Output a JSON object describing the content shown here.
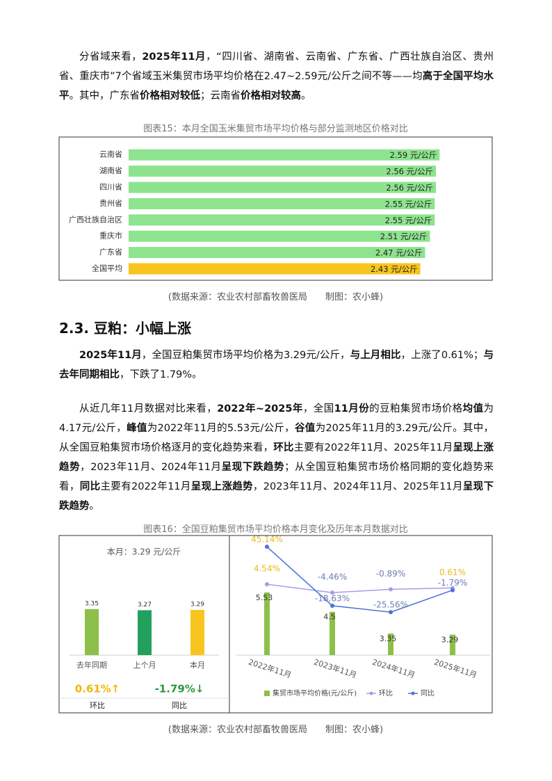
{
  "paragraphs": [
    {
      "runs": [
        {
          "text": "分省域来看，",
          "bold": false
        },
        {
          "text": "2025年11月",
          "bold": true
        },
        {
          "text": "，“四川省、湖南省、云南省、广东省、广西壮族自治区、贵州省、重庆市”7个省域玉米集贸市场平均价格在2.47~2.59元/公斤之间不等——均",
          "bold": false
        },
        {
          "text": "高于全国平均水平",
          "bold": true
        },
        {
          "text": "。其中，广东省",
          "bold": false
        },
        {
          "text": "价格相对较低",
          "bold": true
        },
        {
          "text": "；云南省",
          "bold": false
        },
        {
          "text": "价格相对较高",
          "bold": true
        },
        {
          "text": "。",
          "bold": false
        }
      ]
    },
    {
      "runs": [
        {
          "text": "2025年11月",
          "bold": true
        },
        {
          "text": "，全国豆粕集贸市场平均价格为3.29元/公斤，",
          "bold": false
        },
        {
          "text": "与上月相比",
          "bold": true
        },
        {
          "text": "，上涨了0.61%；",
          "bold": false
        },
        {
          "text": "与去年同期相比",
          "bold": true
        },
        {
          "text": "，下跌了1.79%。",
          "bold": false
        }
      ]
    },
    {
      "runs": [
        {
          "text": "从近几年11月数据对比来看，",
          "bold": false
        },
        {
          "text": "2022年~2025年",
          "bold": true
        },
        {
          "text": "，全国",
          "bold": false
        },
        {
          "text": "11月份",
          "bold": true
        },
        {
          "text": "的豆粕集贸市场价格",
          "bold": false
        },
        {
          "text": "均值",
          "bold": true
        },
        {
          "text": "为4.17元/公斤，",
          "bold": false
        },
        {
          "text": "峰值",
          "bold": true
        },
        {
          "text": "为2022年11月的5.53元/公斤，",
          "bold": false
        },
        {
          "text": "谷值",
          "bold": true
        },
        {
          "text": "为2025年11月的3.29元/公斤。其中，从全国豆粕集贸市场价格逐月的变化趋势来看，",
          "bold": false
        },
        {
          "text": "环比",
          "bold": true
        },
        {
          "text": "主要有2022年11月、2025年11月",
          "bold": false
        },
        {
          "text": "呈现上涨趋势",
          "bold": true
        },
        {
          "text": "，2023年11月、2024年11月",
          "bold": false
        },
        {
          "text": "呈现下跌趋势",
          "bold": true
        },
        {
          "text": "；从全国豆粕集贸市场价格同期的变化趋势来看，",
          "bold": false
        },
        {
          "text": "同比",
          "bold": true
        },
        {
          "text": "主要有2022年11月",
          "bold": false
        },
        {
          "text": "呈现上涨趋势",
          "bold": true
        },
        {
          "text": "，2023年11月、2024年11月、2025年11月",
          "bold": false
        },
        {
          "text": "呈现下跌趋势",
          "bold": true
        },
        {
          "text": "。",
          "bold": false
        }
      ]
    }
  ],
  "heading": "2.3.  豆粕：小幅上涨",
  "captions": [
    "图表15：本月全国玉米集贸市场平均价格与部分监测地区价格对比",
    "图表16：全国豆粕集贸市场平均价格本月变化及历年本月数据对比"
  ],
  "sources": [
    "(数据来源：农业农村部畜牧兽医局　　制图：农小蜂)",
    "(数据来源：农业农村部畜牧兽医局　　制图：农小蜂)"
  ],
  "chart_data": [
    {
      "type": "hbar",
      "categories": [
        "云南省",
        "湖南省",
        "四川省",
        "贵州省",
        "广西壮族自治区",
        "重庆市",
        "广东省",
        "全国平均"
      ],
      "values": [
        2.59,
        2.56,
        2.56,
        2.55,
        2.55,
        2.51,
        2.47,
        2.43
      ],
      "value_labels": [
        "2.59 元/公斤",
        "2.56 元/公斤",
        "2.56 元/公斤",
        "2.55 元/公斤",
        "2.55 元/公斤",
        "2.51 元/公斤",
        "2.47 元/公斤",
        "2.43 元/公斤"
      ],
      "colors": [
        "#8ee38e",
        "#8ee38e",
        "#8ee38e",
        "#8ee38e",
        "#8ee38e",
        "#8ee38e",
        "#8ee38e",
        "#f7c51e"
      ],
      "xlim": [
        0,
        3
      ]
    },
    {
      "type": "bar",
      "subtitle": "本月：3.29 元/公斤",
      "categories": [
        "去年同期",
        "上个月",
        "本月"
      ],
      "values": [
        3.35,
        3.27,
        3.29
      ],
      "colors": [
        "#8dc04a",
        "#23a05e",
        "#f7c51e"
      ],
      "ylim": [
        0,
        8
      ],
      "stats": [
        {
          "label": "0.61%↑",
          "name": "环比",
          "color": "#f2b705"
        },
        {
          "label": "-1.79%↓",
          "name": "同比",
          "color": "#2a9a3a"
        }
      ]
    },
    {
      "type": "combo",
      "categories": [
        "2022年11月",
        "2023年11月",
        "2024年11月",
        "2025年11月"
      ],
      "ylim": [
        2.2,
        8
      ],
      "y2lim": [
        -72,
        46
      ],
      "series": [
        {
          "name": "集贸市场平均价格(元/公斤)",
          "type": "bar",
          "color": "#8dc04a",
          "values": [
            5.53,
            4.5,
            3.35,
            3.29
          ]
        },
        {
          "name": "环比",
          "type": "line",
          "axis": "y2",
          "color": "#a89be8",
          "values": [
            4.54,
            -4.46,
            -0.89,
            0.61
          ],
          "value_labels": [
            "4.54%",
            "-4.46%",
            "-0.89%",
            "0.61%"
          ]
        },
        {
          "name": "同比",
          "type": "line",
          "axis": "y2",
          "color": "#4a72d8",
          "values": [
            45.14,
            -18.63,
            -25.56,
            -1.79
          ],
          "value_labels": [
            "45.14%",
            "-18.63%",
            "-25.56%",
            "-1.79%"
          ]
        }
      ]
    }
  ]
}
